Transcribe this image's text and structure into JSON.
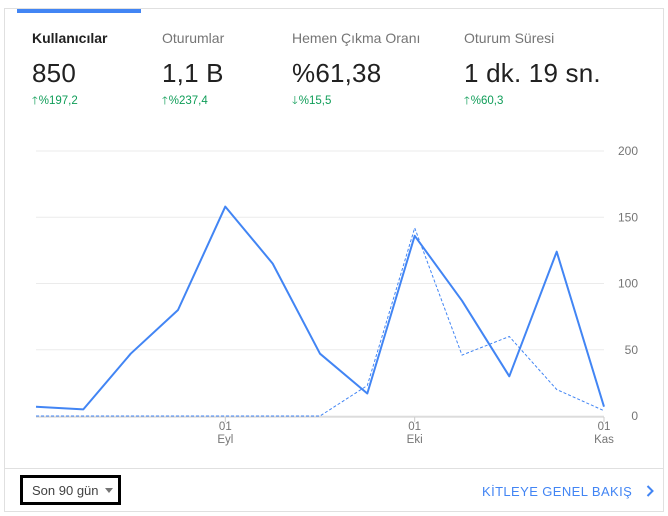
{
  "metrics": [
    {
      "label": "Kullanıcılar",
      "value": "850",
      "delta": "%197,2",
      "direction": "up"
    },
    {
      "label": "Oturumlar",
      "value": "1,1 B",
      "delta": "%237,4",
      "direction": "up"
    },
    {
      "label": "Hemen Çıkma Oranı",
      "value": "%61,38",
      "delta": "%15,5",
      "direction": "down"
    },
    {
      "label": "Oturum Süresi",
      "value": "1 dk. 19 sn.",
      "delta": "%60,3",
      "direction": "up"
    }
  ],
  "footer": {
    "range_label": "Son 90 gün",
    "overview_label": "KİTLEYE GENEL BAKIŞ"
  },
  "colors": {
    "accent": "#4285f4",
    "positive": "#0f9d58"
  },
  "chart_data": {
    "type": "line",
    "y_ticks": [
      "200",
      "150",
      "100",
      "50",
      "0"
    ],
    "ylim": [
      0,
      200
    ],
    "x_ticks": [
      {
        "day": "01",
        "month": "Eyl",
        "index": 4
      },
      {
        "day": "01",
        "month": "Eki",
        "index": 8
      },
      {
        "day": "01",
        "month": "Kas",
        "index": 12
      }
    ],
    "series": [
      {
        "style": "solid",
        "values": [
          7,
          5,
          47,
          80,
          158,
          115,
          47,
          17,
          136,
          87,
          30,
          124,
          7
        ]
      },
      {
        "style": "dashed",
        "values": [
          0,
          0,
          0,
          0,
          0,
          0,
          0,
          23,
          142,
          46,
          60,
          20,
          4
        ]
      }
    ]
  }
}
